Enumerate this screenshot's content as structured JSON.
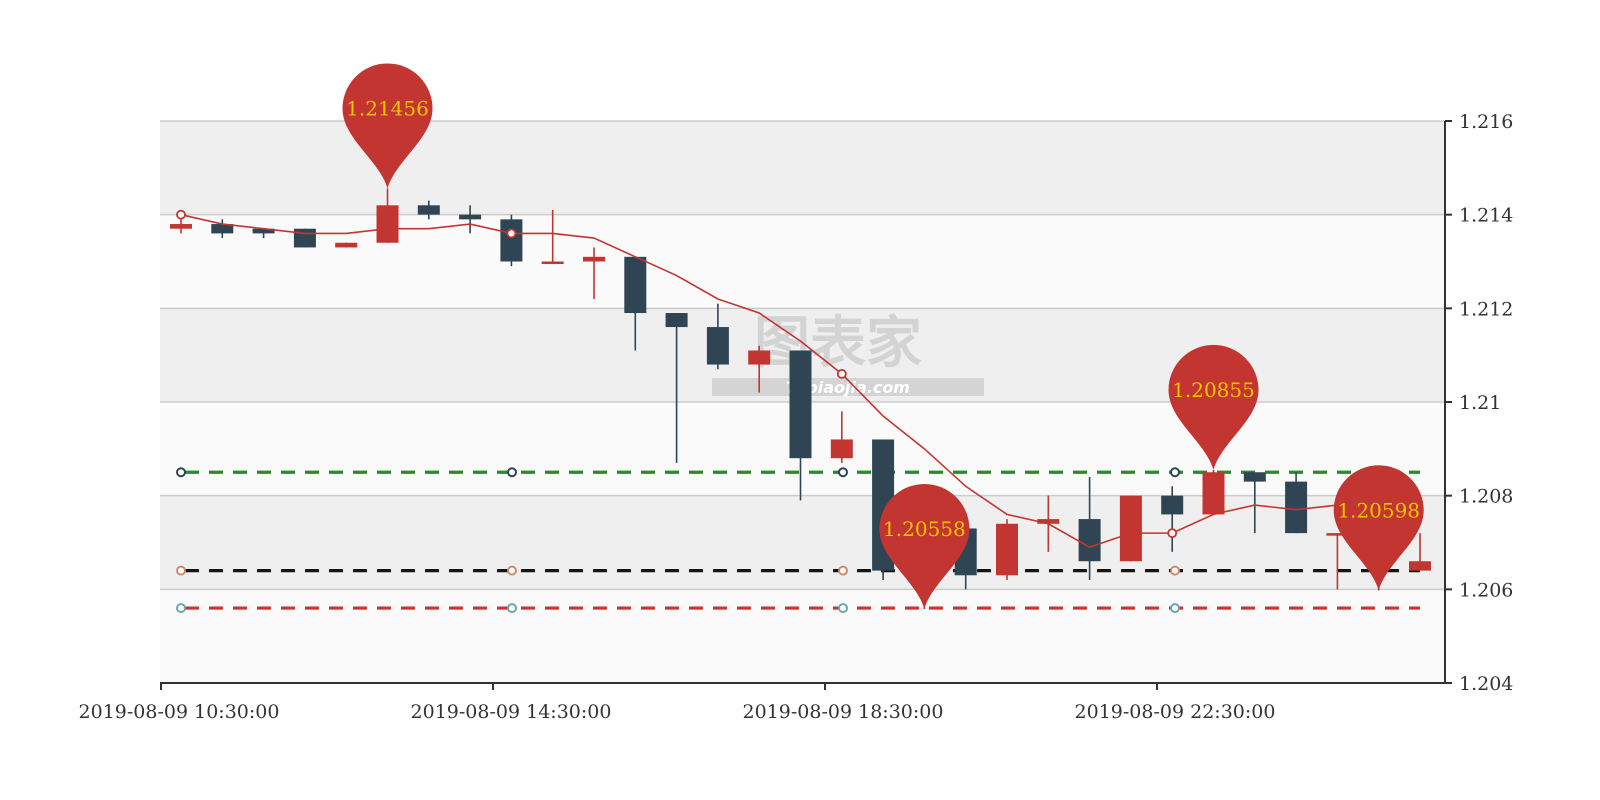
{
  "chart_data": {
    "type": "candlestick",
    "title": "",
    "xlabel": "",
    "ylabel": "",
    "ylim": [
      1.204,
      1.216
    ],
    "y_ticks": [
      "1.204",
      "1.206",
      "1.208",
      "1.21",
      "1.212",
      "1.214",
      "1.216"
    ],
    "x_tick_labels": [
      "2019-08-09  10:30:00",
      "2019-08-09  14:30:00",
      "2019-08-09  18:30:00",
      "2019-08-09  22:30:00"
    ],
    "x_tick_candle_index": [
      0,
      8,
      16,
      24
    ],
    "candles": [
      {
        "open": 1.2137,
        "close": 1.2138,
        "low": 1.2136,
        "high": 1.2139
      },
      {
        "open": 1.2138,
        "close": 1.2136,
        "low": 1.2135,
        "high": 1.2139
      },
      {
        "open": 1.2137,
        "close": 1.2136,
        "low": 1.2135,
        "high": 1.2137
      },
      {
        "open": 1.2137,
        "close": 1.2133,
        "low": 1.2133,
        "high": 1.2137
      },
      {
        "open": 1.2133,
        "close": 1.2134,
        "low": 1.2133,
        "high": 1.2134
      },
      {
        "open": 1.2134,
        "close": 1.2142,
        "low": 1.2134,
        "high": 1.21456
      },
      {
        "open": 1.2142,
        "close": 1.214,
        "low": 1.2139,
        "high": 1.2143
      },
      {
        "open": 1.214,
        "close": 1.2139,
        "low": 1.2136,
        "high": 1.2142
      },
      {
        "open": 1.2139,
        "close": 1.213,
        "low": 1.2129,
        "high": 1.214
      },
      {
        "open": 1.213,
        "close": 1.213,
        "low": 1.213,
        "high": 1.2141
      },
      {
        "open": 1.213,
        "close": 1.2131,
        "low": 1.2122,
        "high": 1.2133
      },
      {
        "open": 1.2131,
        "close": 1.2119,
        "low": 1.2111,
        "high": 1.2131
      },
      {
        "open": 1.2119,
        "close": 1.2116,
        "low": 1.2087,
        "high": 1.2119
      },
      {
        "open": 1.2116,
        "close": 1.2108,
        "low": 1.2107,
        "high": 1.2121
      },
      {
        "open": 1.2108,
        "close": 1.2111,
        "low": 1.2102,
        "high": 1.2112
      },
      {
        "open": 1.2111,
        "close": 1.2088,
        "low": 1.2079,
        "high": 1.2111
      },
      {
        "open": 1.2088,
        "close": 1.2092,
        "low": 1.2087,
        "high": 1.2098
      },
      {
        "open": 1.2092,
        "close": 1.2064,
        "low": 1.2062,
        "high": 1.2092
      },
      {
        "open": 1.2064,
        "close": 1.2066,
        "low": 1.20558,
        "high": 1.2068
      },
      {
        "open": 1.2073,
        "close": 1.2063,
        "low": 1.206,
        "high": 1.2073
      },
      {
        "open": 1.2063,
        "close": 1.2074,
        "low": 1.2062,
        "high": 1.2075
      },
      {
        "open": 1.2074,
        "close": 1.2075,
        "low": 1.2068,
        "high": 1.208
      },
      {
        "open": 1.2075,
        "close": 1.2066,
        "low": 1.2062,
        "high": 1.2084
      },
      {
        "open": 1.2066,
        "close": 1.208,
        "low": 1.2066,
        "high": 1.208
      },
      {
        "open": 1.208,
        "close": 1.2076,
        "low": 1.2068,
        "high": 1.2082
      },
      {
        "open": 1.2076,
        "close": 1.2085,
        "low": 1.2076,
        "high": 1.20855
      },
      {
        "open": 1.2085,
        "close": 1.2083,
        "low": 1.2072,
        "high": 1.2085
      },
      {
        "open": 1.2083,
        "close": 1.2072,
        "low": 1.2072,
        "high": 1.2085
      },
      {
        "open": 1.2072,
        "close": 1.2072,
        "low": 1.206,
        "high": 1.2072
      },
      {
        "open": 1.2072,
        "close": 1.2067,
        "low": 1.20598,
        "high": 1.2075
      },
      {
        "open": 1.2064,
        "close": 1.2066,
        "low": 1.2064,
        "high": 1.2072
      }
    ],
    "ma_line": [
      1.214,
      1.2138,
      1.2137,
      1.2136,
      1.2136,
      1.2137,
      1.2137,
      1.2138,
      1.2136,
      1.2136,
      1.2135,
      1.2131,
      1.2127,
      1.2122,
      1.2119,
      1.2113,
      1.2106,
      1.2097,
      1.209,
      1.2082,
      1.2076,
      1.2074,
      1.2069,
      1.2072,
      1.2072,
      1.2076,
      1.2078,
      1.2077,
      1.2078,
      1.2074,
      null
    ],
    "mark_points": [
      {
        "label": "1.21456",
        "candle_index": 5,
        "value": 1.21456
      },
      {
        "label": "1.20558",
        "candle_index": 18,
        "value": 1.20558
      },
      {
        "label": "1.20855",
        "candle_index": 25,
        "value": 1.20855
      },
      {
        "label": "1.20598",
        "candle_index": 29,
        "value": 1.20598
      }
    ],
    "mark_lines": [
      {
        "value": 1.2085,
        "color": "#2a8a2a"
      },
      {
        "value": 1.2064,
        "color": "#111111"
      },
      {
        "value": 1.2056,
        "color": "#d03030"
      }
    ],
    "colors": {
      "rise": "#c23531",
      "fall": "#2f4554",
      "ma": "#c23531",
      "pin": "#c23531",
      "pin_text": "#f5c400",
      "band": "#efefef",
      "grid": "#cccccc",
      "axis": "#333333"
    },
    "watermark": {
      "big": "图表家",
      "small": "Tubiaojia.com"
    },
    "grid": true,
    "y_axis_position": "right"
  }
}
